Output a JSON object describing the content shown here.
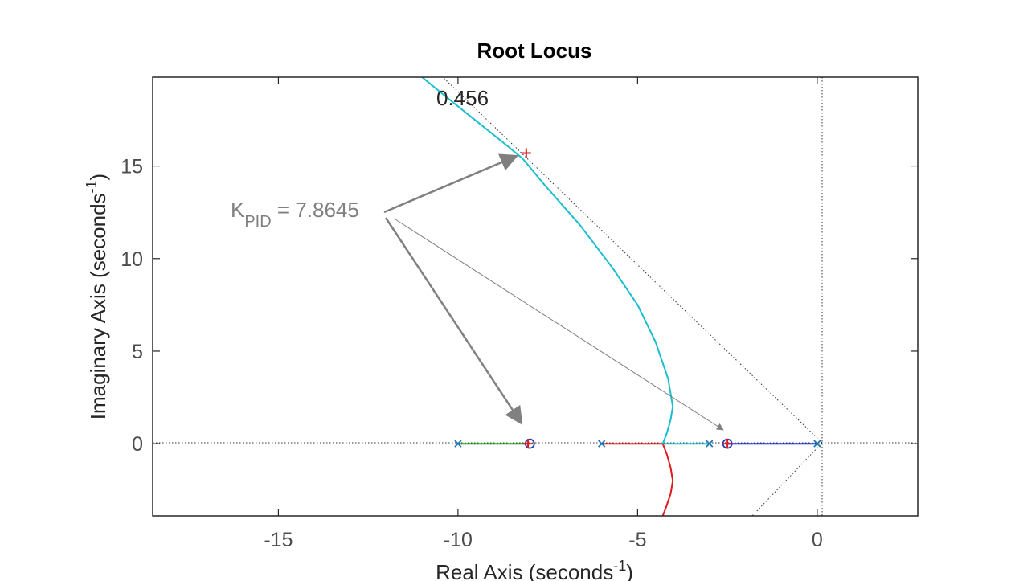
{
  "chart_data": {
    "type": "line",
    "title": "Root Locus",
    "xlabel": {
      "main": "Real Axis (seconds",
      "sup": "-1",
      "close": ")"
    },
    "ylabel": {
      "main": "Imaginary Axis (seconds",
      "sup": "-1",
      "close": ")"
    },
    "xlim": [
      -18.5,
      2.8
    ],
    "ylim": [
      -3.9,
      19.8
    ],
    "xticks": [
      -15,
      -10,
      -5,
      0
    ],
    "yticks": [
      0,
      5,
      10,
      15
    ],
    "xtick_labels": [
      "-15",
      "-10",
      "-5",
      "0"
    ],
    "ytick_labels": [
      "0",
      "5",
      "10",
      "15"
    ],
    "grid": false,
    "damping_label": "0.456",
    "annotation": {
      "k": "K",
      "sub": "PID",
      "rest": " = 7.8645"
    },
    "poles": [
      {
        "x": -10,
        "y": 0
      },
      {
        "x": -6,
        "y": 0
      },
      {
        "x": -3,
        "y": 0
      },
      {
        "x": 0,
        "y": 0
      }
    ],
    "zeros": [
      {
        "x": -8,
        "y": 0
      },
      {
        "x": -2.5,
        "y": 0
      }
    ],
    "selected_points": [
      {
        "x": -8.1,
        "y": 15.7
      },
      {
        "x": -8.05,
        "y": 0
      },
      {
        "x": -2.5,
        "y": 0
      }
    ],
    "series": [
      {
        "color": "#1f9e1f",
        "x": [
          -10,
          -8.05
        ],
        "y": [
          0,
          0
        ]
      },
      {
        "color": "#e31a1c",
        "x": [
          -8.05,
          -8.0
        ],
        "y": [
          0,
          0
        ]
      },
      {
        "color": "#e31a1c",
        "x": [
          -6,
          -4.3
        ],
        "y": [
          0,
          0
        ]
      },
      {
        "color": "#e31a1c",
        "x": [
          -4.3,
          -4.18,
          -4.08,
          -4.02,
          -4.08,
          -4.2,
          -4.3
        ],
        "y": [
          0,
          -0.6,
          -1.3,
          -2.0,
          -2.7,
          -3.4,
          -3.9
        ]
      },
      {
        "color": "#17becf",
        "x": [
          -3,
          -4.3
        ],
        "y": [
          0,
          0
        ]
      },
      {
        "color": "#17becf",
        "x": [
          -4.3,
          -4.18,
          -4.08,
          -4.02,
          -4.15,
          -4.5,
          -5.0,
          -5.7,
          -6.6,
          -7.6,
          -8.2,
          -8.7,
          -9.6,
          -10.5,
          -11.0
        ],
        "y": [
          0,
          0.6,
          1.3,
          2.0,
          3.5,
          5.5,
          7.5,
          9.5,
          11.8,
          14.0,
          15.4,
          16.2,
          17.6,
          19.0,
          19.8
        ]
      },
      {
        "color": "#1f2ed6",
        "x": [
          -2.5,
          0
        ],
        "y": [
          0,
          0
        ]
      },
      {
        "color": "#1f2ed6",
        "x": [
          -2.5,
          -2.4
        ],
        "y": [
          0,
          0
        ]
      }
    ]
  }
}
